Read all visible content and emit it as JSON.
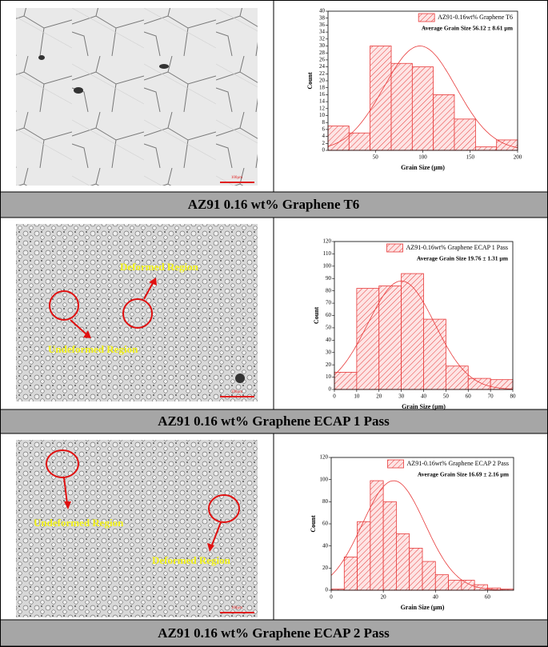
{
  "rows": [
    {
      "caption": "AZ91 0.16 wt% Graphene T6",
      "scale_bar": "100µm",
      "annotations": []
    },
    {
      "caption": "AZ91 0.16 wt% Graphene ECAP 1 Pass",
      "scale_bar": "100µm",
      "annotations": [
        "Deformed Region",
        "Undeformed Region"
      ]
    },
    {
      "caption": "AZ91 0.16 wt% Graphene ECAP 2 Pass",
      "scale_bar": "100µm",
      "annotations": [
        "Undeformed Region",
        "Deformed Region"
      ]
    }
  ],
  "chart_data": [
    {
      "type": "histogram",
      "legend": "AZ91-0.16wt% Graphene T6",
      "annotation": "Average Grain Size 56.12 ± 8.61 µm",
      "xlabel": "Grain Size (µm)",
      "ylabel": "Count",
      "color": "#e83a3a",
      "bins": [
        0,
        22.2,
        44.4,
        66.7,
        88.9,
        111.1,
        133.3,
        155.6,
        177.8,
        200
      ],
      "values": [
        7,
        5,
        30,
        25,
        24,
        16,
        9,
        1,
        3
      ],
      "fit": {
        "mean": 97,
        "sd": 38,
        "peak": 30
      },
      "xlim": [
        0,
        200
      ],
      "xticks": [
        50,
        100,
        150,
        200
      ],
      "ylim": [
        0,
        40
      ],
      "yticks": [
        0,
        2,
        4,
        6,
        8,
        10,
        12,
        14,
        16,
        18,
        20,
        22,
        24,
        26,
        28,
        30,
        32,
        34,
        36,
        38,
        40
      ]
    },
    {
      "type": "histogram",
      "legend": "AZ91-0.16wt% Graphene ECAP 1 Pass",
      "annotation": "Average Grain Size 19.76 ± 1.31 µm",
      "xlabel": "Grain Size (µm)",
      "ylabel": "Count",
      "color": "#e83a3a",
      "bins": [
        0,
        10,
        20,
        30,
        40,
        50,
        60,
        70,
        80
      ],
      "values": [
        14,
        82,
        84,
        94,
        57,
        19,
        9,
        8
      ],
      "fit": {
        "mean": 30,
        "sd": 15,
        "peak": 88
      },
      "xlim": [
        0,
        80
      ],
      "xticks": [
        0,
        10,
        20,
        30,
        40,
        50,
        60,
        70,
        80
      ],
      "ylim": [
        0,
        120
      ],
      "yticks": [
        0,
        10,
        20,
        30,
        40,
        50,
        60,
        70,
        80,
        90,
        100,
        110,
        120
      ]
    },
    {
      "type": "histogram",
      "legend": "AZ91-0.16wt% Graphene ECAP 2 Pass",
      "annotation": "Average Grain Size 16.69 ± 2.16 µm",
      "xlabel": "Grain Size (µm)",
      "ylabel": "Count",
      "color": "#e83a3a",
      "bins": [
        0,
        5,
        10,
        15,
        20,
        25,
        30,
        35,
        40,
        45,
        50,
        55,
        60,
        65,
        70
      ],
      "values": [
        1,
        30,
        62,
        99,
        80,
        51,
        38,
        26,
        14,
        9,
        9,
        5,
        2,
        1
      ],
      "fit": {
        "mean": 24,
        "sd": 12,
        "peak": 99
      },
      "xlim": [
        0,
        70
      ],
      "xticks": [
        0,
        20,
        40,
        60
      ],
      "ylim": [
        0,
        120
      ],
      "yticks": [
        0,
        20,
        40,
        60,
        80,
        100,
        120
      ]
    }
  ]
}
